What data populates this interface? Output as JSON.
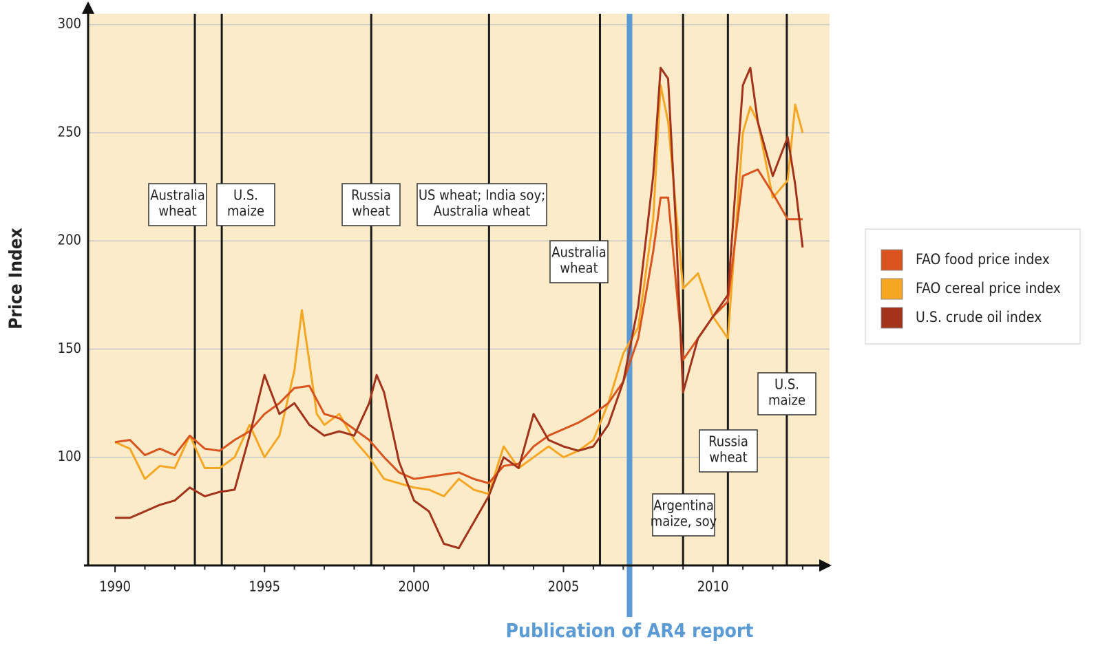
{
  "chart_data": {
    "type": "line",
    "y_label": "Price Index",
    "xlim": [
      1989.1,
      2013.9
    ],
    "xticks": [
      1990,
      1995,
      2000,
      2005,
      2010
    ],
    "ylim": [
      50,
      305
    ],
    "yticks": [
      100,
      150,
      200,
      250,
      300
    ],
    "grid": true,
    "legend": "right",
    "series": [
      {
        "name": "FAO food price index",
        "color": "#d9531e",
        "x": [
          1990,
          1990.5,
          1991,
          1991.5,
          1992,
          1992.5,
          1993,
          1993.5,
          1994,
          1994.5,
          1995,
          1995.5,
          1996,
          1996.5,
          1997,
          1997.5,
          1998,
          1998.5,
          1999,
          1999.5,
          2000,
          2000.5,
          2001,
          2001.5,
          2002,
          2002.5,
          2003,
          2003.5,
          2004,
          2004.5,
          2005,
          2005.5,
          2006,
          2006.5,
          2007,
          2007.5,
          2008,
          2008.25,
          2008.5,
          2009,
          2009.5,
          2010,
          2010.5,
          2011,
          2011.5,
          2012,
          2012.5,
          2013
        ],
        "values": [
          107,
          108,
          101,
          104,
          101,
          110,
          104,
          103,
          108,
          112,
          120,
          125,
          132,
          133,
          120,
          118,
          113,
          108,
          100,
          93,
          90,
          91,
          92,
          93,
          90,
          88,
          96,
          97,
          105,
          110,
          113,
          116,
          120,
          125,
          135,
          155,
          195,
          220,
          220,
          145,
          155,
          165,
          172,
          230,
          233,
          222,
          210,
          210
        ]
      },
      {
        "name": "FAO cereal price index",
        "color": "#f5a623",
        "x": [
          1990,
          1990.5,
          1991,
          1991.5,
          1992,
          1992.5,
          1993,
          1993.5,
          1994,
          1994.5,
          1995,
          1995.5,
          1996,
          1996.25,
          1996.75,
          1997,
          1997.5,
          1998,
          1998.5,
          1999,
          1999.5,
          2000,
          2000.5,
          2001,
          2001.5,
          2002,
          2002.5,
          2003,
          2003.5,
          2004,
          2004.5,
          2005,
          2005.5,
          2006,
          2006.5,
          2007,
          2007.5,
          2008,
          2008.25,
          2008.5,
          2009,
          2009.5,
          2010,
          2010.5,
          2011,
          2011.25,
          2011.5,
          2012,
          2012.5,
          2012.75,
          2013
        ],
        "values": [
          107,
          104,
          90,
          96,
          95,
          110,
          95,
          95,
          100,
          115,
          100,
          110,
          140,
          168,
          120,
          115,
          120,
          108,
          100,
          90,
          88,
          86,
          85,
          82,
          90,
          85,
          83,
          105,
          95,
          100,
          105,
          100,
          103,
          108,
          125,
          148,
          160,
          210,
          272,
          255,
          178,
          185,
          165,
          155,
          250,
          262,
          255,
          220,
          228,
          263,
          250
        ]
      },
      {
        "name": "U.S. crude oil index",
        "color": "#a3321b",
        "x": [
          1990,
          1990.5,
          1991,
          1991.5,
          1992,
          1992.5,
          1993,
          1993.5,
          1994,
          1994.5,
          1995,
          1995.5,
          1996,
          1996.5,
          1997,
          1997.5,
          1998,
          1998.5,
          1998.75,
          1999,
          1999.5,
          2000,
          2000.5,
          2001,
          2001.5,
          2002,
          2002.5,
          2003,
          2003.5,
          2004,
          2004.5,
          2005,
          2005.5,
          2006,
          2006.5,
          2007,
          2007.5,
          2008,
          2008.25,
          2008.5,
          2008.75,
          2009,
          2009.5,
          2010,
          2010.5,
          2011,
          2011.25,
          2011.5,
          2012,
          2012.5,
          2012.75,
          2013
        ],
        "values": [
          72,
          72,
          75,
          78,
          80,
          86,
          82,
          84,
          85,
          110,
          138,
          120,
          125,
          115,
          110,
          112,
          110,
          125,
          138,
          130,
          98,
          80,
          75,
          60,
          58,
          70,
          82,
          100,
          95,
          120,
          108,
          105,
          103,
          105,
          115,
          135,
          170,
          230,
          280,
          275,
          210,
          130,
          155,
          165,
          175,
          272,
          280,
          255,
          230,
          248,
          226,
          197
        ]
      }
    ],
    "events": [
      {
        "x": 1992.67,
        "label": [
          "Australia",
          "wheat"
        ]
      },
      {
        "x": 1993.57,
        "label": [
          "U.S.",
          "maize"
        ]
      },
      {
        "x": 1998.57,
        "label": [
          "Russia",
          "wheat"
        ]
      },
      {
        "x": 2002.51,
        "label": [
          "US wheat; India soy;",
          "Australia wheat"
        ]
      },
      {
        "x": 2006.22,
        "label": [
          "Australia",
          "wheat"
        ]
      },
      {
        "x": 2009.0,
        "label": [
          "Argentina",
          "maize, soy"
        ]
      },
      {
        "x": 2010.5,
        "label": [
          "Russia",
          "wheat"
        ]
      },
      {
        "x": 2012.47,
        "label": [
          "U.S.",
          "maize"
        ]
      }
    ],
    "report": {
      "x": 2007.21,
      "label": "Publication of AR4 report",
      "color": "#5b9bd5"
    }
  }
}
